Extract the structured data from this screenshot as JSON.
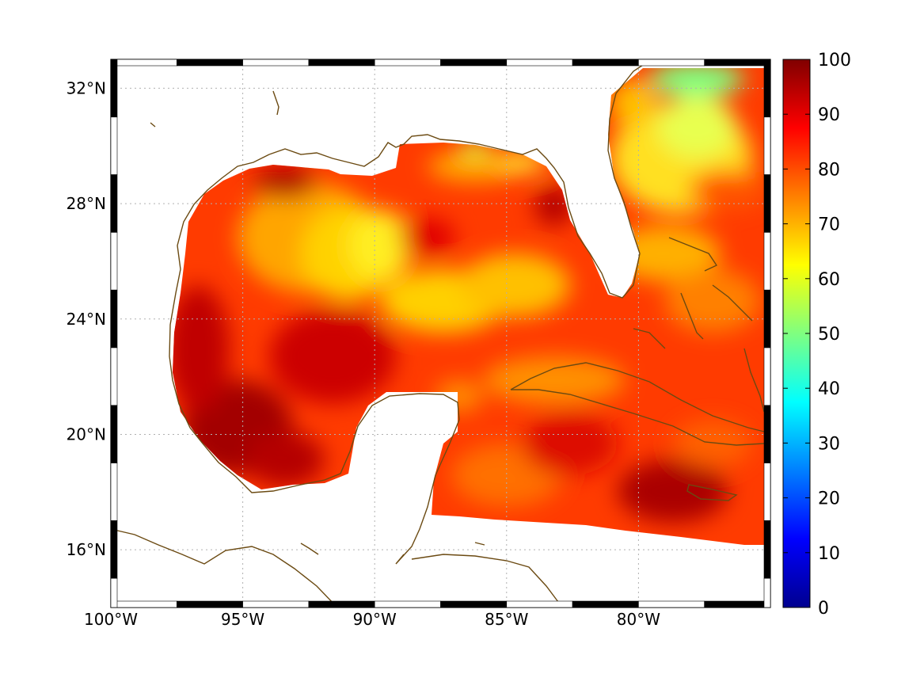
{
  "map": {
    "lon_range": [
      -100,
      -75
    ],
    "lat_range": [
      14,
      33
    ],
    "x_ticks": [
      {
        "value": -100,
        "label": "100°W"
      },
      {
        "value": -95,
        "label": "95°W"
      },
      {
        "value": -90,
        "label": "90°W"
      },
      {
        "value": -85,
        "label": "85°W"
      },
      {
        "value": -80,
        "label": "80°W"
      }
    ],
    "y_ticks": [
      {
        "value": 32,
        "label": "32°N"
      },
      {
        "value": 28,
        "label": "28°N"
      },
      {
        "value": 24,
        "label": "24°N"
      },
      {
        "value": 20,
        "label": "20°N"
      },
      {
        "value": 16,
        "label": "16°N"
      }
    ],
    "grid": "dotted",
    "coastline_color": "#6b4a12"
  },
  "colorbar": {
    "min": 0,
    "max": 100,
    "colormap": "jet",
    "ticks": [
      "100",
      "90",
      "80",
      "70",
      "60",
      "50",
      "40",
      "30",
      "20",
      "10",
      "0"
    ]
  }
}
